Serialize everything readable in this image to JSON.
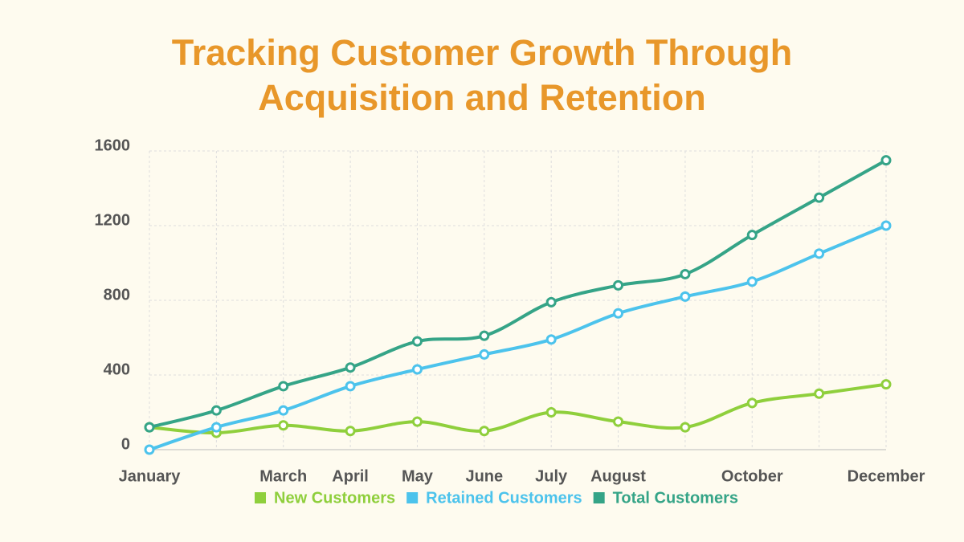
{
  "chart_data": {
    "type": "line",
    "title": "Tracking Customer Growth Through Acquisition and Retention",
    "categories": [
      "January",
      null,
      "March",
      "April",
      "May",
      "June",
      "July",
      "August",
      null,
      "October",
      null,
      "December"
    ],
    "series": [
      {
        "name": "New Customers",
        "color": "#8fcf3c",
        "values": [
          120,
          90,
          130,
          100,
          150,
          100,
          200,
          150,
          120,
          250,
          300,
          350
        ]
      },
      {
        "name": "Retained Customers",
        "color": "#4cc3ec",
        "values": [
          0,
          120,
          210,
          340,
          430,
          510,
          590,
          730,
          820,
          900,
          1050,
          1200
        ]
      },
      {
        "name": "Total Customers",
        "color": "#35a487",
        "values": [
          120,
          210,
          340,
          440,
          580,
          610,
          790,
          880,
          940,
          1150,
          1350,
          1550
        ]
      }
    ],
    "ylim": [
      0,
      1600
    ],
    "yticks": [
      0,
      400,
      800,
      1200,
      1600
    ],
    "grid": true
  }
}
